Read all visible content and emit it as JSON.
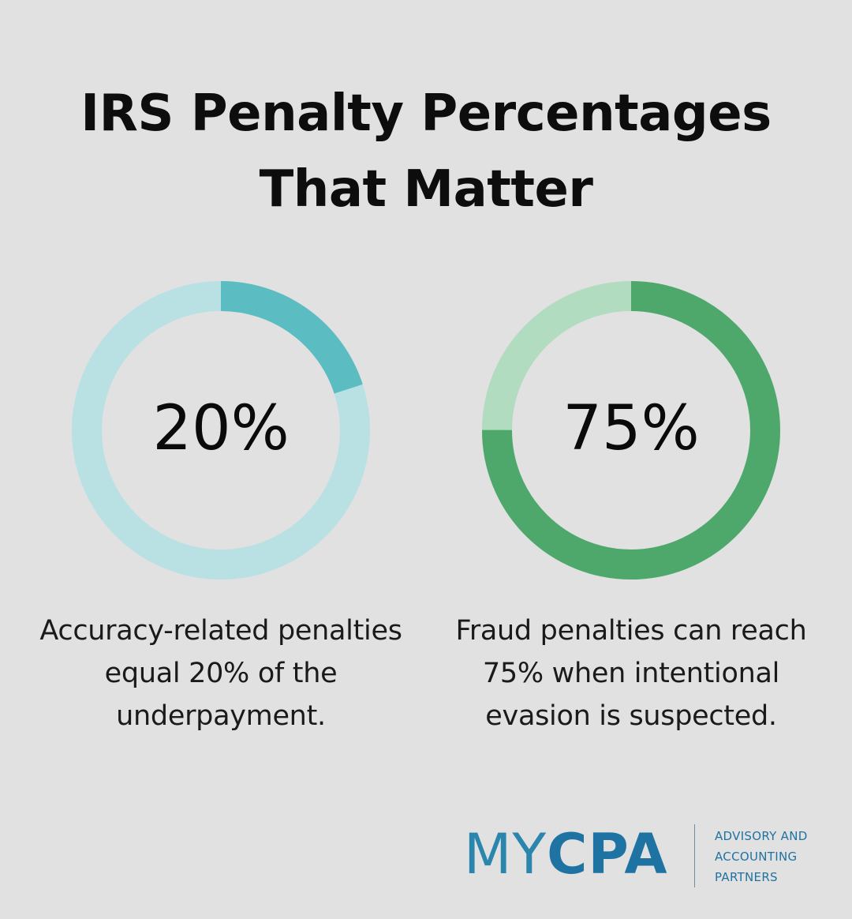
{
  "title_lines": [
    "IRS Penalty Percentages",
    "That Matter"
  ],
  "chart_data": [
    {
      "type": "pie",
      "style": "donut",
      "value_percent": 20,
      "center_label": "20%",
      "description": "Accuracy-related penalties equal 20% of the underpayment.",
      "description_lines": [
        "Accuracy-related penalties",
        "equal 20% of the",
        "underpayment."
      ],
      "colors": {
        "fill": "#5bbcc2",
        "track": "#b9e1e4"
      }
    },
    {
      "type": "pie",
      "style": "donut",
      "value_percent": 75,
      "center_label": "75%",
      "description": "Fraud penalties can reach 75% when intentional evasion is suspected.",
      "description_lines": [
        "Fraud penalties can reach",
        "75% when intentional",
        "evasion is suspected."
      ],
      "colors": {
        "fill": "#4ea86c",
        "track": "#b2dcc0"
      }
    }
  ],
  "logo": {
    "brand_part1": "MY",
    "brand_part2": "CPA",
    "tagline_lines": [
      "ADVISORY AND",
      "ACCOUNTING",
      "PARTNERS"
    ]
  },
  "colors": {
    "background": "#e0e1e0",
    "text": "#0d0d0d",
    "brand_blue": "#1f73a3"
  }
}
